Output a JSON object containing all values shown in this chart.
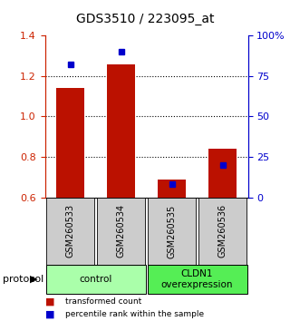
{
  "title": "GDS3510 / 223095_at",
  "samples": [
    "GSM260533",
    "GSM260534",
    "GSM260535",
    "GSM260536"
  ],
  "transformed_count": [
    1.14,
    1.255,
    0.69,
    0.84
  ],
  "percentile_rank": [
    82,
    90,
    8,
    20
  ],
  "ylim_left": [
    0.6,
    1.4
  ],
  "ylim_right": [
    0,
    100
  ],
  "yticks_left": [
    0.6,
    0.8,
    1.0,
    1.2,
    1.4
  ],
  "yticks_right": [
    0,
    25,
    50,
    75,
    100
  ],
  "ytick_labels_right": [
    "0",
    "25",
    "50",
    "75",
    "100%"
  ],
  "dotted_lines": [
    0.8,
    1.0,
    1.2
  ],
  "bar_color": "#bb1100",
  "dot_color": "#0000cc",
  "bar_width": 0.55,
  "groups": [
    {
      "label": "control",
      "indices": [
        0,
        1
      ],
      "color": "#aaffaa"
    },
    {
      "label": "CLDN1\noverexpression",
      "indices": [
        2,
        3
      ],
      "color": "#55ee55"
    }
  ],
  "protocol_label": "protocol",
  "legend_items": [
    {
      "color": "#bb1100",
      "label": "transformed count"
    },
    {
      "color": "#0000cc",
      "label": "percentile rank within the sample"
    }
  ],
  "title_fontsize": 10,
  "axis_color_left": "#cc2200",
  "axis_color_right": "#0000cc",
  "label_box_color": "#cccccc",
  "xlim": [
    -0.5,
    3.5
  ]
}
